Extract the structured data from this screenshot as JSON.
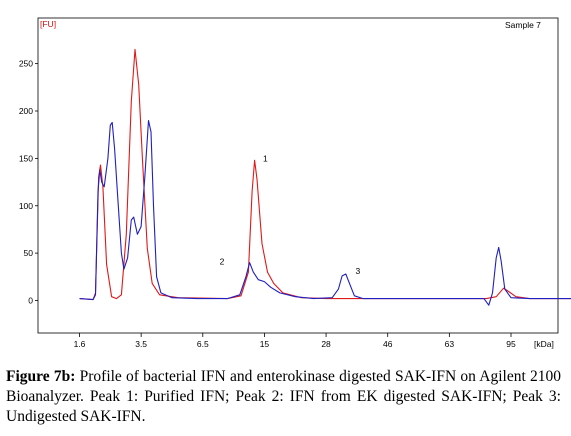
{
  "chart_data": {
    "type": "line",
    "sample_label": "Sample 7",
    "y_unit": "[FU]",
    "x_unit": "[kDa]",
    "ylim": [
      -40,
      290
    ],
    "y_ticks": [
      0,
      50,
      100,
      150,
      200,
      250
    ],
    "x_ticks": [
      "1.6",
      "3.5",
      "6.5",
      "15",
      "28",
      "46",
      "63",
      "95"
    ],
    "grid": false,
    "series": [
      {
        "color": "#e01818",
        "points": [
          [
            0.0,
            2
          ],
          [
            0.22,
            1
          ],
          [
            0.26,
            8
          ],
          [
            0.31,
            130
          ],
          [
            0.34,
            143
          ],
          [
            0.38,
            120
          ],
          [
            0.44,
            38
          ],
          [
            0.52,
            4
          ],
          [
            0.6,
            2
          ],
          [
            0.68,
            6
          ],
          [
            0.76,
            70
          ],
          [
            0.84,
            210
          ],
          [
            0.9,
            265
          ],
          [
            0.96,
            228
          ],
          [
            1.02,
            150
          ],
          [
            1.1,
            55
          ],
          [
            1.18,
            18
          ],
          [
            1.3,
            6
          ],
          [
            1.6,
            3
          ],
          [
            2.4,
            2
          ],
          [
            2.62,
            5
          ],
          [
            2.74,
            30
          ],
          [
            2.8,
            115
          ],
          [
            2.84,
            148
          ],
          [
            2.88,
            128
          ],
          [
            2.96,
            60
          ],
          [
            3.05,
            30
          ],
          [
            3.15,
            18
          ],
          [
            3.3,
            8
          ],
          [
            3.6,
            3
          ],
          [
            4.0,
            2
          ],
          [
            5.8,
            2
          ],
          [
            6.6,
            2
          ],
          [
            6.76,
            4
          ],
          [
            6.88,
            13
          ],
          [
            6.95,
            10
          ],
          [
            7.08,
            4
          ],
          [
            7.3,
            2
          ],
          [
            8.0,
            2
          ]
        ]
      },
      {
        "color": "#2020c0",
        "points": [
          [
            0.0,
            2
          ],
          [
            0.22,
            1
          ],
          [
            0.26,
            6
          ],
          [
            0.3,
            115
          ],
          [
            0.33,
            138
          ],
          [
            0.36,
            125
          ],
          [
            0.4,
            120
          ],
          [
            0.46,
            150
          ],
          [
            0.5,
            185
          ],
          [
            0.53,
            188
          ],
          [
            0.57,
            160
          ],
          [
            0.63,
            100
          ],
          [
            0.68,
            50
          ],
          [
            0.72,
            33
          ],
          [
            0.78,
            45
          ],
          [
            0.84,
            85
          ],
          [
            0.88,
            88
          ],
          [
            0.94,
            70
          ],
          [
            1.0,
            78
          ],
          [
            1.06,
            130
          ],
          [
            1.12,
            190
          ],
          [
            1.16,
            178
          ],
          [
            1.2,
            100
          ],
          [
            1.25,
            25
          ],
          [
            1.32,
            8
          ],
          [
            1.5,
            3
          ],
          [
            1.9,
            2
          ],
          [
            2.4,
            2
          ],
          [
            2.6,
            6
          ],
          [
            2.7,
            25
          ],
          [
            2.76,
            40
          ],
          [
            2.82,
            30
          ],
          [
            2.9,
            22
          ],
          [
            3.0,
            20
          ],
          [
            3.1,
            14
          ],
          [
            3.25,
            8
          ],
          [
            3.5,
            4
          ],
          [
            3.8,
            2
          ],
          [
            4.1,
            3
          ],
          [
            4.2,
            12
          ],
          [
            4.26,
            26
          ],
          [
            4.32,
            28
          ],
          [
            4.38,
            18
          ],
          [
            4.46,
            5
          ],
          [
            4.6,
            2
          ],
          [
            5.8,
            2
          ],
          [
            6.56,
            2
          ],
          [
            6.64,
            -5
          ],
          [
            6.7,
            8
          ],
          [
            6.76,
            45
          ],
          [
            6.8,
            56
          ],
          [
            6.84,
            42
          ],
          [
            6.9,
            12
          ],
          [
            7.0,
            3
          ],
          [
            7.3,
            2
          ],
          [
            8.0,
            2
          ]
        ]
      }
    ],
    "peaks": [
      {
        "label": "1",
        "x": 2.88,
        "y": 150
      },
      {
        "label": "2",
        "x": 2.63,
        "y": 37
      },
      {
        "label": "3",
        "x": 4.38,
        "y": 31
      }
    ]
  },
  "caption": {
    "label": "Figure 7b:",
    "text": " Profile of bacterial IFN and enterokinase digested SAK-IFN on Agilent 2100 Bioanalyzer. Peak 1: Purified IFN; Peak 2: IFN from EK digested SAK-IFN; Peak 3: Undigested SAK-IFN."
  }
}
